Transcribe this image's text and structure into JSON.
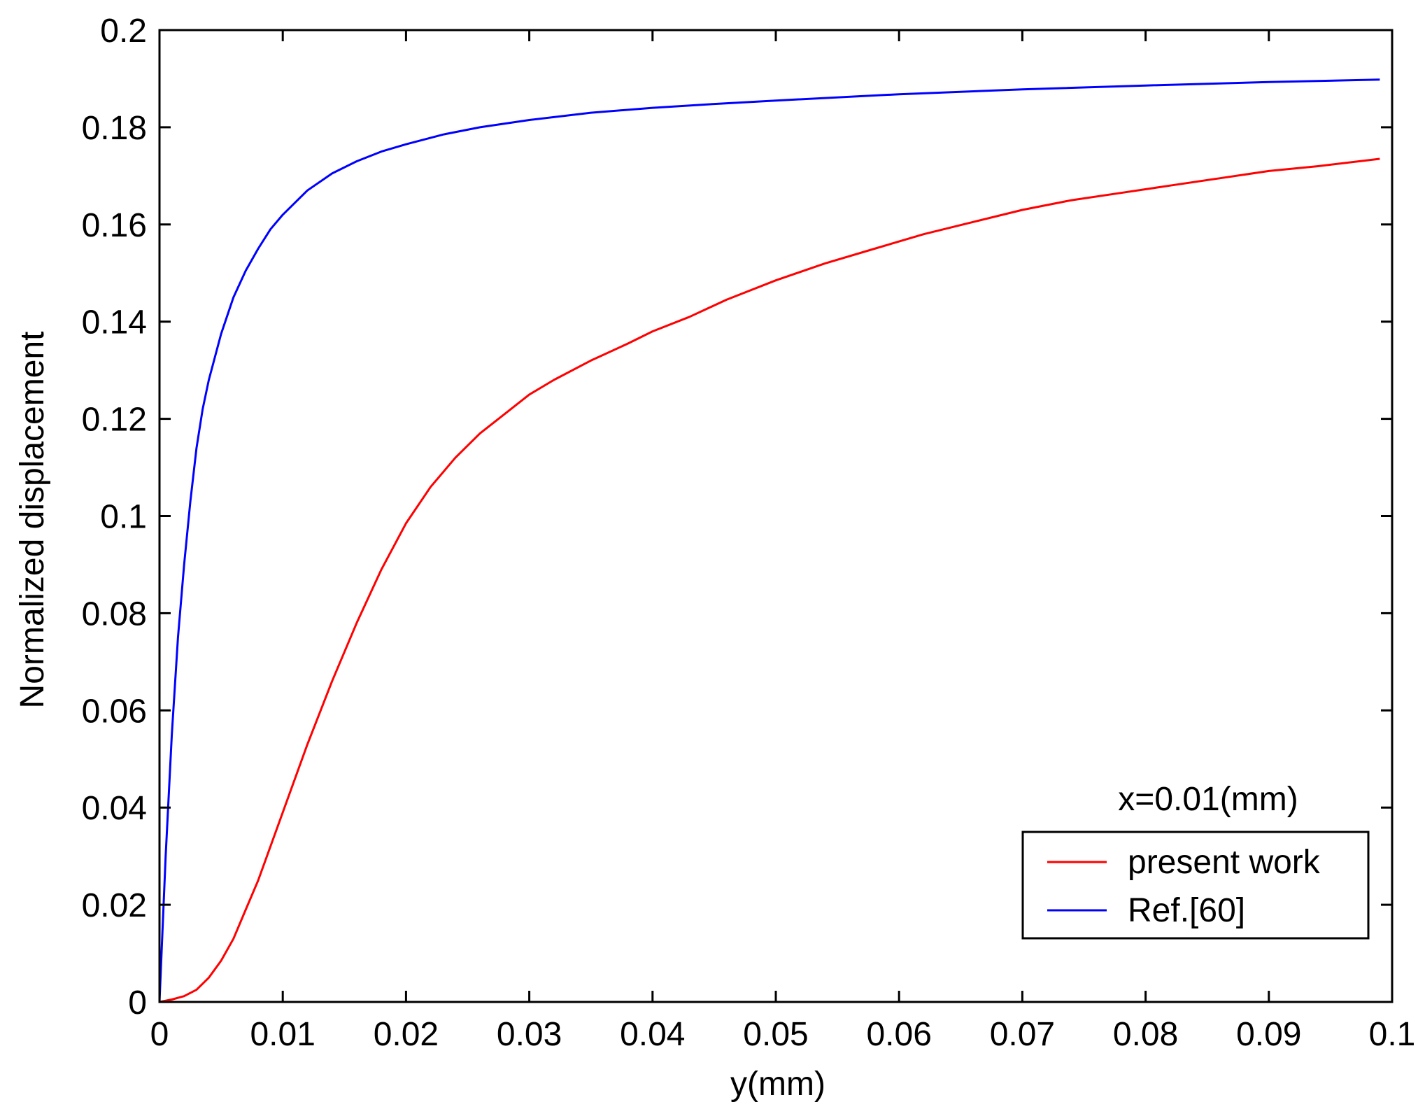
{
  "chart_data": {
    "type": "line",
    "title": "",
    "xlabel": "y(mm)",
    "ylabel": "Normalized displacement",
    "xlim": [
      0,
      0.1
    ],
    "ylim": [
      0,
      0.2
    ],
    "xticks": [
      0,
      0.01,
      0.02,
      0.03,
      0.04,
      0.05,
      0.06,
      0.07,
      0.08,
      0.09,
      0.1
    ],
    "xtick_labels": [
      "0",
      "0.01",
      "0.02",
      "0.03",
      "0.04",
      "0.05",
      "0.06",
      "0.07",
      "0.08",
      "0.09",
      "0.1"
    ],
    "yticks": [
      0,
      0.02,
      0.04,
      0.06,
      0.08,
      0.1,
      0.12,
      0.14,
      0.16,
      0.18,
      0.2
    ],
    "ytick_labels": [
      "0",
      "0.02",
      "0.04",
      "0.06",
      "0.08",
      "0.1",
      "0.12",
      "0.14",
      "0.16",
      "0.18",
      "0.2"
    ],
    "grid": false,
    "legend_position": "bottom-right",
    "annotation": "x=0.01(mm)",
    "series": [
      {
        "name": "present work",
        "color": "#ff0000",
        "x": [
          0,
          0.001,
          0.002,
          0.003,
          0.004,
          0.005,
          0.006,
          0.007,
          0.008,
          0.009,
          0.01,
          0.012,
          0.014,
          0.016,
          0.018,
          0.02,
          0.022,
          0.024,
          0.026,
          0.028,
          0.03,
          0.032,
          0.035,
          0.038,
          0.04,
          0.043,
          0.046,
          0.05,
          0.054,
          0.058,
          0.062,
          0.066,
          0.07,
          0.074,
          0.078,
          0.082,
          0.086,
          0.09,
          0.094,
          0.099
        ],
        "y": [
          0,
          0.0005,
          0.0012,
          0.0025,
          0.005,
          0.0085,
          0.013,
          0.019,
          0.025,
          0.032,
          0.039,
          0.053,
          0.066,
          0.078,
          0.089,
          0.0985,
          0.106,
          0.112,
          0.117,
          0.121,
          0.125,
          0.128,
          0.132,
          0.1355,
          0.138,
          0.141,
          0.1445,
          0.1485,
          0.152,
          0.155,
          0.158,
          0.1605,
          0.163,
          0.165,
          0.1665,
          0.168,
          0.1695,
          0.171,
          0.172,
          0.1735
        ]
      },
      {
        "name": "Ref.[60]",
        "color": "#0000ff",
        "x": [
          0,
          0.0002,
          0.0005,
          0.001,
          0.0015,
          0.002,
          0.0025,
          0.003,
          0.0035,
          0.004,
          0.005,
          0.006,
          0.007,
          0.008,
          0.009,
          0.01,
          0.012,
          0.014,
          0.016,
          0.018,
          0.02,
          0.023,
          0.026,
          0.03,
          0.035,
          0.04,
          0.045,
          0.05,
          0.06,
          0.07,
          0.08,
          0.09,
          0.099
        ],
        "y": [
          0,
          0.012,
          0.03,
          0.055,
          0.075,
          0.09,
          0.103,
          0.114,
          0.122,
          0.128,
          0.1375,
          0.145,
          0.1505,
          0.155,
          0.159,
          0.162,
          0.167,
          0.1705,
          0.173,
          0.175,
          0.1765,
          0.1785,
          0.18,
          0.1815,
          0.183,
          0.184,
          0.1848,
          0.1855,
          0.1868,
          0.1878,
          0.1886,
          0.1893,
          0.1898
        ]
      }
    ]
  }
}
